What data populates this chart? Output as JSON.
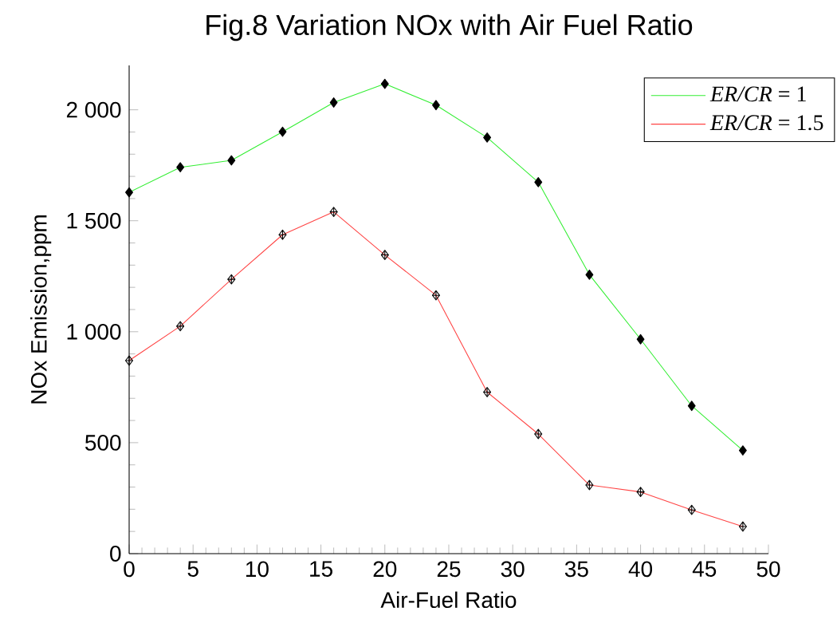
{
  "chart_data": {
    "type": "line",
    "title": "Fig.8 Variation NOx with Air Fuel Ratio",
    "xlabel": "Air-Fuel Ratio",
    "ylabel": "NOx Emission,ppm",
    "x": [
      0,
      4,
      8,
      12,
      16,
      20,
      24,
      28,
      32,
      36,
      40,
      44,
      48
    ],
    "series": [
      {
        "name": "*ER/CR* = 1",
        "color": "#33ee33",
        "values": [
          1628,
          1741,
          1772,
          1901,
          2033,
          2117,
          2021,
          1875,
          1674,
          1257,
          966,
          666,
          465
        ]
      },
      {
        "name": "*ER/CR* = 1.5",
        "color": "#ff4444",
        "values": [
          870,
          1025,
          1236,
          1437,
          1540,
          1346,
          1164,
          728,
          539,
          309,
          278,
          197,
          122
        ]
      }
    ],
    "xlim": [
      0,
      50
    ],
    "xticks": [
      0,
      5,
      10,
      15,
      20,
      25,
      30,
      35,
      40,
      45,
      50
    ],
    "ylim": [
      0,
      2200
    ],
    "yticks": [
      0,
      500,
      {
        "value": 1000,
        "label": "1 000"
      },
      {
        "value": 1500,
        "label": "1 500"
      },
      {
        "value": 2000,
        "label": "2 000"
      }
    ],
    "grid": false,
    "legend": "top right",
    "marker": "diamond",
    "line_style": "solid"
  }
}
